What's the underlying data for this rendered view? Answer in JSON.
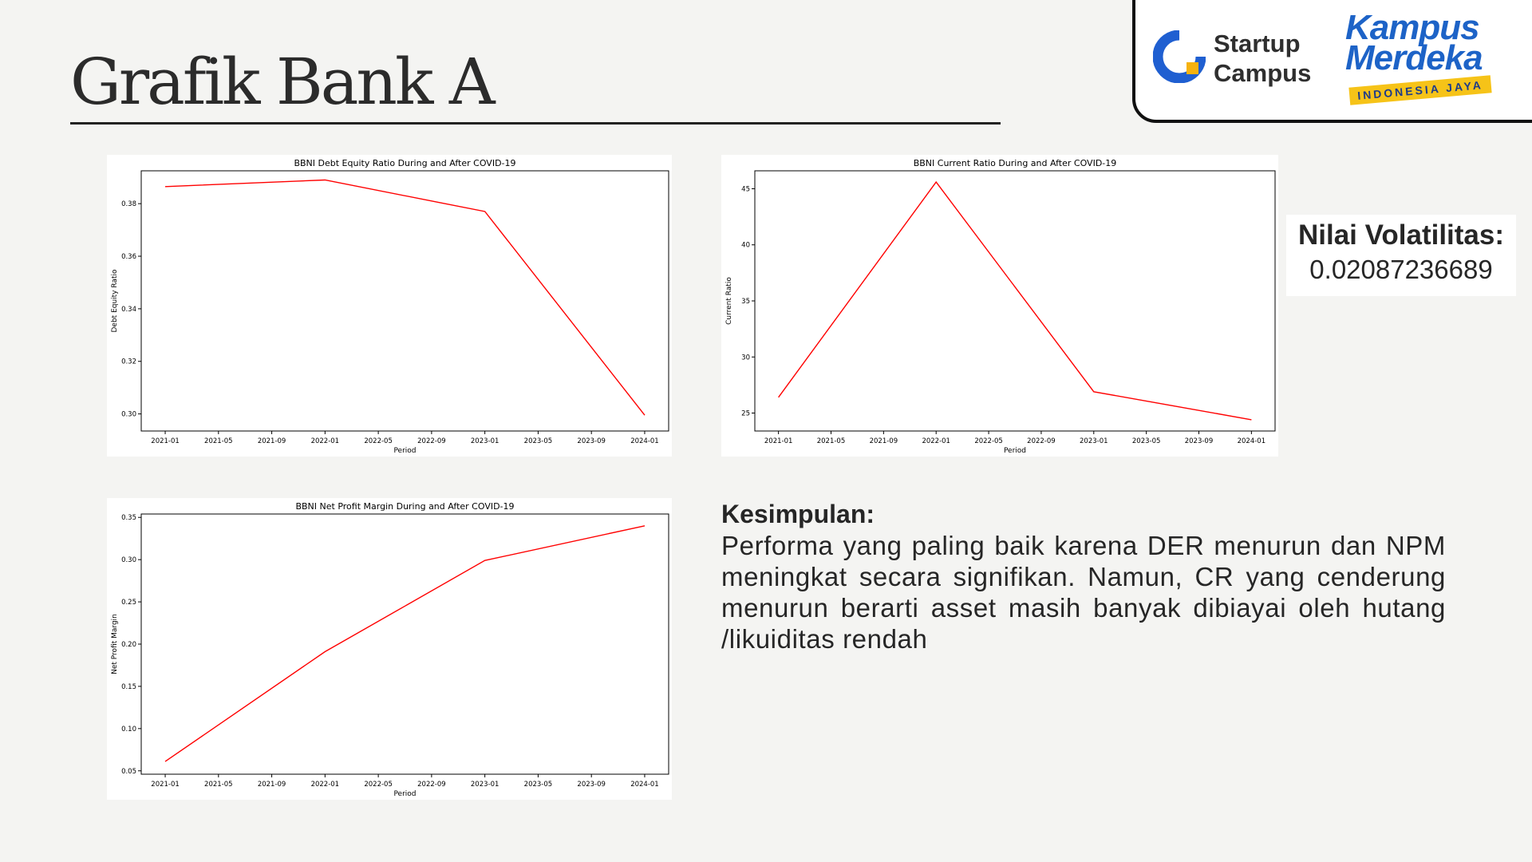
{
  "page_title": "Grafik Bank A",
  "logos": {
    "startup_campus": [
      "Startup",
      "Campus"
    ],
    "kampus_merdeka": [
      "Kampus",
      "Merdeka"
    ],
    "kampus_merdeka_tagline": "INDONESIA JAYA"
  },
  "volatility": {
    "label": "Nilai Volatilitas:",
    "value": "0.02087236689"
  },
  "conclusion": {
    "heading": "Kesimpulan:",
    "body": "Performa yang paling baik karena DER menurun dan NPM meningkat secara signifikan. Namun, CR yang cenderung menurun berarti asset masih banyak dibiayai oleh hutang /likuiditas rendah"
  },
  "chart_data": [
    {
      "type": "line",
      "title": "BBNI Debt Equity Ratio During and After COVID-19",
      "xlabel": "Period",
      "ylabel": "Debt Equity Ratio",
      "x": [
        "2021-01",
        "2022-01",
        "2023-01",
        "2024-01"
      ],
      "x_ticks": [
        "2021-01",
        "2021-05",
        "2021-09",
        "2022-01",
        "2022-05",
        "2022-09",
        "2023-01",
        "2023-05",
        "2023-09",
        "2024-01"
      ],
      "y_ticks": [
        "0.30",
        "0.32",
        "0.34",
        "0.36",
        "0.38"
      ],
      "ylim": [
        0.2935,
        0.3925
      ],
      "series": [
        {
          "values": [
            0.3865,
            0.389,
            0.377,
            0.2995
          ],
          "color": "#ff0000"
        }
      ],
      "grid": false
    },
    {
      "type": "line",
      "title": "BBNI Current Ratio During and After COVID-19",
      "xlabel": "Period",
      "ylabel": "Current Ratio",
      "x": [
        "2021-01",
        "2022-01",
        "2023-01",
        "2024-01"
      ],
      "x_ticks": [
        "2021-01",
        "2021-05",
        "2021-09",
        "2022-01",
        "2022-05",
        "2022-09",
        "2023-01",
        "2023-05",
        "2023-09",
        "2024-01"
      ],
      "y_ticks": [
        "25",
        "30",
        "35",
        "40",
        "45"
      ],
      "ylim": [
        23.4,
        46.6
      ],
      "series": [
        {
          "values": [
            26.4,
            45.6,
            26.9,
            24.4
          ],
          "color": "#ff0000"
        }
      ],
      "grid": false
    },
    {
      "type": "line",
      "title": "BBNI Net Profit Margin During and After COVID-19",
      "xlabel": "Period",
      "ylabel": "Net Profit Margin",
      "x": [
        "2021-01",
        "2022-01",
        "2023-01",
        "2024-01"
      ],
      "x_ticks": [
        "2021-01",
        "2021-05",
        "2021-09",
        "2022-01",
        "2022-05",
        "2022-09",
        "2023-01",
        "2023-05",
        "2023-09",
        "2024-01"
      ],
      "y_ticks": [
        "0.05",
        "0.10",
        "0.15",
        "0.20",
        "0.25",
        "0.30",
        "0.35"
      ],
      "ylim": [
        0.046,
        0.354
      ],
      "series": [
        {
          "values": [
            0.061,
            0.191,
            0.299,
            0.34
          ],
          "color": "#ff0000"
        }
      ],
      "grid": false
    }
  ]
}
